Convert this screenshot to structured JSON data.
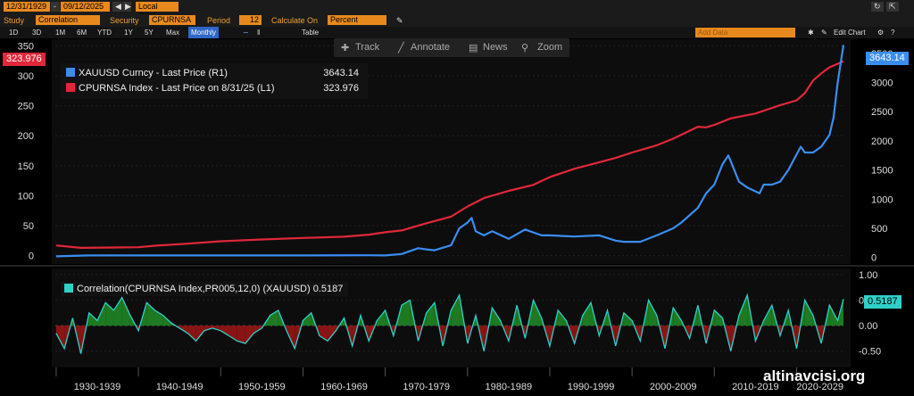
{
  "header": {
    "start_date": "12/31/1929",
    "end_date": "09/12/2025",
    "currency": "Local CCY",
    "study_label": "Study",
    "study_value": "Correlation",
    "security_label": "Security",
    "security_value": "CPURNSA I",
    "period_label": "Period",
    "period_value": "12",
    "calc_label": "Calculate On",
    "calc_value": "Percent"
  },
  "range_bar": {
    "ranges": [
      "1D",
      "3D",
      "1M",
      "6M",
      "YTD",
      "1Y",
      "5Y",
      "Max"
    ],
    "frequency": "Monthly",
    "table_label": "Table",
    "add_data_placeholder": "Add Data",
    "edit_chart_label": "Edit Chart"
  },
  "toolbar": {
    "track": "Track",
    "annotate": "Annotate",
    "news": "News",
    "zoom": "Zoom"
  },
  "legend": {
    "series": [
      {
        "label": "XAUUSD Curncy - Last Price (R1)",
        "value": "3643.14",
        "color": "#3a8ef0"
      },
      {
        "label": "CPURNSA Index - Last Price on 8/31/25 (L1)",
        "value": "323.976",
        "color": "#e0283a"
      }
    ]
  },
  "badges": {
    "left": "323.976",
    "right": "3643.14",
    "corr": "0.5187"
  },
  "corr_legend": {
    "label": "Correlation(CPURNSA Index,PR005,12,0) (XAUUSD)",
    "value": "0.5187"
  },
  "watermark": "altinavcisi.org",
  "colors": {
    "cpi": "#e0283a",
    "gold": "#3a8ef0",
    "corr_line": "#2fd0c8",
    "corr_pos": "#1d7a22",
    "corr_neg": "#8a1414",
    "accent": "#e8891e"
  },
  "chart_data": [
    {
      "type": "line",
      "x_unit": "year",
      "xlim": [
        1929.9,
        2025.7
      ],
      "left_axis": {
        "ylim": [
          -8,
          352
        ],
        "ticks": [
          0,
          50,
          100,
          150,
          200,
          250,
          300,
          350
        ]
      },
      "right_axis": {
        "ylim": [
          -50,
          3650
        ],
        "ticks": [
          0,
          500,
          1000,
          1500,
          2000,
          2500,
          3000,
          3500
        ]
      },
      "series": [
        {
          "name": "CPURNSA Index - Last Price on 8/31/25 (L1)",
          "axis": "left",
          "x": [
            1930,
            1933,
            1940,
            1942,
            1946,
            1950,
            1955,
            1960,
            1965,
            1968,
            1970,
            1972,
            1975,
            1978,
            1980,
            1982,
            1985,
            1988,
            1990,
            1993,
            1995,
            1998,
            2000,
            2003,
            2005,
            2008,
            2009,
            2010,
            2012,
            2015,
            2018,
            2020,
            2021,
            2022,
            2023,
            2024,
            2025.7
          ],
          "y": [
            17,
            13,
            14,
            16.5,
            20,
            24,
            27,
            29.5,
            31.5,
            35,
            39,
            42,
            54,
            65,
            82,
            96,
            108,
            118,
            131,
            145,
            152,
            163,
            172,
            184,
            195,
            215,
            214,
            218,
            229,
            237,
            251,
            259,
            271,
            292,
            304,
            314,
            323.976
          ]
        },
        {
          "name": "XAUUSD Curncy - Last Price (R1)",
          "axis": "right",
          "x": [
            1930,
            1934,
            1950,
            1960,
            1968,
            1970,
            1972,
            1974,
            1975,
            1976,
            1978,
            1979,
            1980,
            1980.5,
            1981,
            1982,
            1983,
            1985,
            1987,
            1989,
            1990,
            1993,
            1996,
            1998,
            1999,
            2001,
            2003,
            2005,
            2006,
            2008,
            2009,
            2010,
            2011,
            2011.7,
            2012,
            2013,
            2014,
            2015.5,
            2016,
            2017,
            2018,
            2019,
            2020.5,
            2021,
            2022,
            2023,
            2023.5,
            2024,
            2024.5,
            2025,
            2025.7
          ],
          "y": [
            20,
            35,
            35,
            35,
            39,
            36,
            60,
            160,
            140,
            125,
            210,
            500,
            600,
            680,
            450,
            380,
            450,
            320,
            480,
            380,
            380,
            360,
            380,
            290,
            270,
            270,
            380,
            500,
            600,
            850,
            1100,
            1250,
            1600,
            1750,
            1650,
            1300,
            1200,
            1100,
            1250,
            1250,
            1300,
            1500,
            1900,
            1800,
            1800,
            1900,
            2000,
            2100,
            2400,
            3000,
            3643.14
          ]
        }
      ]
    },
    {
      "type": "area",
      "name": "Correlation(CPURNSA Index,PR005,12,0) (XAUUSD)",
      "x_unit": "year",
      "xlim": [
        1929.9,
        2025.7
      ],
      "ylim": [
        -0.75,
        1.05
      ],
      "y_ticks": [
        -0.5,
        0,
        0.5,
        1.0
      ],
      "x": [
        1930,
        1931,
        1932,
        1933,
        1934,
        1935,
        1936,
        1937,
        1938,
        1939,
        1940,
        1941,
        1942,
        1943,
        1944,
        1945,
        1946,
        1947,
        1948,
        1949,
        1950,
        1951,
        1952,
        1953,
        1954,
        1955,
        1956,
        1957,
        1958,
        1959,
        1960,
        1961,
        1962,
        1963,
        1964,
        1965,
        1966,
        1967,
        1968,
        1969,
        1970,
        1971,
        1972,
        1973,
        1974,
        1975,
        1976,
        1977,
        1978,
        1979,
        1980,
        1981,
        1982,
        1983,
        1984,
        1985,
        1986,
        1987,
        1988,
        1989,
        1990,
        1991,
        1992,
        1993,
        1994,
        1995,
        1996,
        1997,
        1998,
        1999,
        2000,
        2001,
        2002,
        2003,
        2004,
        2005,
        2006,
        2007,
        2008,
        2009,
        2010,
        2011,
        2012,
        2013,
        2014,
        2015,
        2016,
        2017,
        2018,
        2019,
        2020,
        2021,
        2022,
        2023,
        2024,
        2025,
        2025.7
      ],
      "values": [
        -0.15,
        -0.45,
        0.15,
        -0.55,
        0.25,
        0.1,
        0.45,
        0.3,
        0.55,
        0.2,
        -0.1,
        0.45,
        0.3,
        0.2,
        0.05,
        -0.05,
        -0.15,
        -0.3,
        -0.1,
        -0.05,
        -0.1,
        -0.2,
        -0.3,
        -0.35,
        -0.15,
        -0.05,
        0.2,
        0.3,
        -0.1,
        -0.45,
        0.1,
        0.25,
        -0.2,
        -0.3,
        -0.1,
        0.15,
        -0.4,
        0.2,
        -0.3,
        0.1,
        0.3,
        -0.2,
        0.4,
        0.5,
        -0.3,
        0.25,
        0.45,
        -0.4,
        0.3,
        0.6,
        -0.35,
        0.2,
        -0.5,
        0.35,
        0.1,
        -0.3,
        0.4,
        -0.25,
        0.5,
        0.15,
        -0.4,
        0.3,
        0.1,
        -0.35,
        0.2,
        0.45,
        -0.2,
        0.3,
        -0.4,
        0.25,
        0.1,
        -0.3,
        0.5,
        0.2,
        -0.45,
        0.35,
        0.1,
        -0.25,
        0.4,
        -0.35,
        0.3,
        0.15,
        -0.5,
        0.2,
        0.6,
        -0.3,
        0.1,
        0.4,
        -0.2,
        0.3,
        -0.45,
        0.5,
        0.2,
        -0.35,
        0.4,
        0.1,
        0.5187
      ]
    }
  ]
}
